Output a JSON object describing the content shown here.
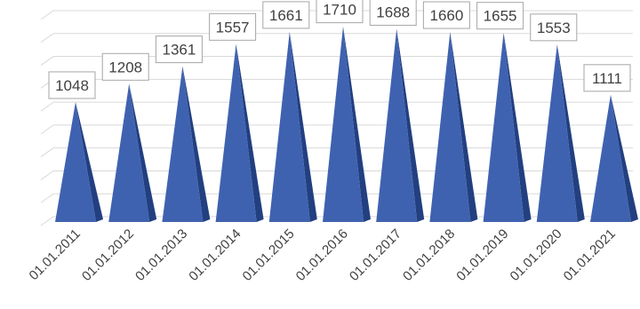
{
  "chart_data": {
    "type": "bar",
    "bar_shape": "pyramid-3d",
    "categories": [
      "01.01.2011",
      "01.01.2012",
      "01.01.2013",
      "01.01.2014",
      "01.01.2015",
      "01.01.2016",
      "01.01.2017",
      "01.01.2018",
      "01.01.2019",
      "01.01.2020",
      "01.01.2021"
    ],
    "values": [
      1048,
      1208,
      1361,
      1557,
      1661,
      1710,
      1688,
      1660,
      1655,
      1553,
      1111
    ],
    "title": "",
    "xlabel": "",
    "ylabel": "",
    "ylim": [
      0,
      1800
    ],
    "grid": true,
    "legend": "none",
    "data_labels": true,
    "colors": {
      "bar_front": "#3f62b0",
      "bar_side": "#223f80",
      "grid": "#d9d9d9",
      "label_border": "#a6a6a6",
      "text": "#404040"
    }
  }
}
